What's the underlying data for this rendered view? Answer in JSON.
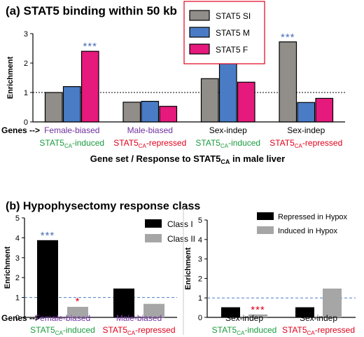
{
  "colors": {
    "stat5_si": "#918d89",
    "stat5_m": "#4a7cc6",
    "stat5_f": "#e6197c",
    "class_i": "#000000",
    "class_ii": "#a6a6a6",
    "purple": "#7030a0",
    "green": "#1a9b3e",
    "red": "#e0001b",
    "star_blue": "#4a6fb8",
    "ref_line_blue": "#4a7cc6"
  },
  "chart_data": [
    {
      "panel": "a",
      "type": "bar",
      "title": "(a) STAT5 binding within 50 kb",
      "ylabel": "Enrichment",
      "xlabel": {
        "main": "Gene set / Response to STAT5",
        "sub": "CA",
        "post": " in male liver"
      },
      "genes_prefix": "Genes -->",
      "ylim": [
        0,
        3
      ],
      "yticks": [
        "0",
        "1",
        "2",
        "3"
      ],
      "reference_line": 1,
      "grid": false,
      "legend_position": "top-center",
      "categories": [
        {
          "line1": "Female-biased",
          "line1_color": "purple",
          "line2_pre": "STAT5",
          "line2_sub": "CA",
          "line2_post": "-induced",
          "line2_color": "green"
        },
        {
          "line1": "Male-biased",
          "line1_color": "purple",
          "line2_pre": "STAT5",
          "line2_sub": "CA",
          "line2_post": "-repressed",
          "line2_color": "red"
        },
        {
          "line1": "Sex-indep",
          "line1_color": "black",
          "line2_pre": "STAT5",
          "line2_sub": "CA",
          "line2_post": "-induced",
          "line2_color": "green"
        },
        {
          "line1": "Sex-indep",
          "line1_color": "black",
          "line2_pre": "STAT5",
          "line2_sub": "CA",
          "line2_post": "-repressed",
          "line2_color": "red"
        }
      ],
      "series": [
        {
          "name": "STAT5 SI",
          "color_key": "stat5_si",
          "values": [
            1.0,
            0.67,
            1.47,
            2.72
          ]
        },
        {
          "name": "STAT5 M",
          "color_key": "stat5_m",
          "values": [
            1.2,
            0.7,
            2.0,
            0.66
          ]
        },
        {
          "name": "STAT5 F",
          "color_key": "stat5_f",
          "values": [
            2.4,
            0.53,
            1.35,
            0.8
          ]
        }
      ],
      "annotations": [
        {
          "text": "***",
          "category": 0,
          "series": 2,
          "color_key": "star_blue"
        },
        {
          "text": "*",
          "category": 2,
          "series": 1,
          "color_key": "star_blue"
        },
        {
          "text": "***",
          "category": 3,
          "series": 0,
          "color_key": "star_blue"
        }
      ]
    },
    {
      "panel": "b1",
      "type": "bar",
      "title": "(b) Hypophysectomy response class",
      "ylabel": "Enrichment",
      "genes_prefix": "Genes -->",
      "ylim": [
        0,
        5
      ],
      "yticks": [
        "0",
        "1",
        "2",
        "3",
        "4",
        "5"
      ],
      "reference_line": 1,
      "grid": false,
      "legend_position": "top-right",
      "categories": [
        {
          "line1": "Female-biased",
          "line1_color": "purple",
          "line2_pre": "STAT5",
          "line2_sub": "CA",
          "line2_post": "-induced",
          "line2_color": "green"
        },
        {
          "line1": "Male-biased",
          "line1_color": "purple",
          "line2_pre": "STAT5",
          "line2_sub": "CA",
          "line2_post": "-repressed",
          "line2_color": "red"
        }
      ],
      "series": [
        {
          "name": "Class I",
          "color_key": "class_i",
          "values": [
            3.88,
            1.45
          ]
        },
        {
          "name": "Class II",
          "color_key": "class_ii",
          "values": [
            0.53,
            0.68
          ]
        }
      ],
      "annotations": [
        {
          "text": "***",
          "category": 0,
          "series": 0,
          "color_key": "star_blue"
        },
        {
          "text": "*",
          "category": 0,
          "series": 1,
          "color_key": "red"
        }
      ]
    },
    {
      "panel": "b2",
      "type": "bar",
      "title": "",
      "ylabel": "Enrichment",
      "ylim": [
        0,
        5
      ],
      "yticks": [
        "0",
        "1",
        "2",
        "3",
        "4",
        "5"
      ],
      "reference_line": 1,
      "grid": false,
      "legend_position": "top",
      "categories": [
        {
          "line1": "Sex-indep",
          "line1_color": "black",
          "line2_pre": "STAT5",
          "line2_sub": "CA",
          "line2_post": "-induced",
          "line2_color": "green"
        },
        {
          "line1": "Sex-indep",
          "line1_color": "black",
          "line2_pre": "STAT5",
          "line2_sub": "CA",
          "line2_post": "-repressed",
          "line2_color": "red"
        }
      ],
      "series": [
        {
          "name": "Repressed in Hypox",
          "color_key": "class_i",
          "values": [
            0.52,
            0.52
          ]
        },
        {
          "name": "Induced in Hypox",
          "color_key": "class_ii",
          "values": [
            0.15,
            1.48
          ]
        }
      ],
      "annotations": [
        {
          "text": "***",
          "category": 0,
          "series": 1,
          "color_key": "red"
        }
      ]
    }
  ]
}
